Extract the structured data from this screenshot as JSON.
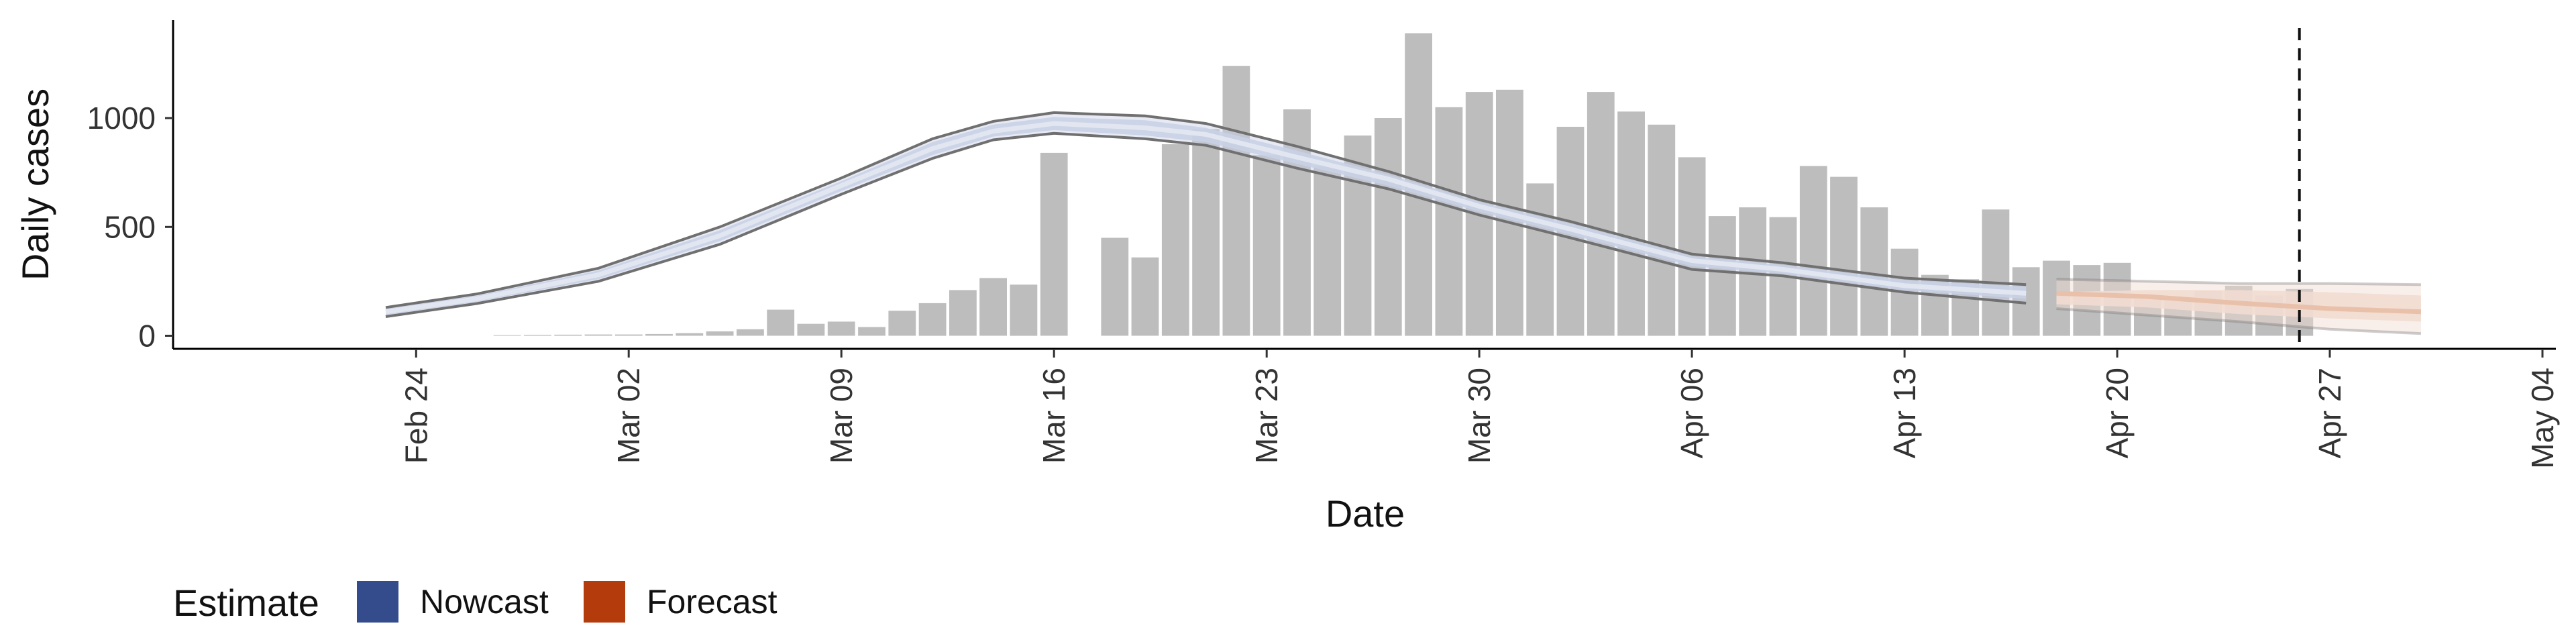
{
  "chart_data": {
    "type": "bar",
    "xlabel": "Date",
    "ylabel": "Daily cases",
    "ylim": [
      -60,
      1450
    ],
    "xlim": [
      "2020-02-16",
      "2020-05-04"
    ],
    "y_ticks": [
      0,
      500,
      1000
    ],
    "x_ticks": [
      {
        "date": "2020-02-24",
        "label": "Feb 24"
      },
      {
        "date": "2020-03-02",
        "label": "Mar 02"
      },
      {
        "date": "2020-03-09",
        "label": "Mar 09"
      },
      {
        "date": "2020-03-16",
        "label": "Mar 16"
      },
      {
        "date": "2020-03-23",
        "label": "Mar 23"
      },
      {
        "date": "2020-03-30",
        "label": "Mar 30"
      },
      {
        "date": "2020-04-06",
        "label": "Apr 06"
      },
      {
        "date": "2020-04-13",
        "label": "Apr 13"
      },
      {
        "date": "2020-04-20",
        "label": "Apr 20"
      },
      {
        "date": "2020-04-27",
        "label": "Apr 27"
      },
      {
        "date": "2020-05-04",
        "label": "May 04"
      }
    ],
    "cases": {
      "dates": [
        "2020-02-27",
        "2020-02-28",
        "2020-02-29",
        "2020-03-01",
        "2020-03-02",
        "2020-03-03",
        "2020-03-04",
        "2020-03-05",
        "2020-03-06",
        "2020-03-07",
        "2020-03-08",
        "2020-03-09",
        "2020-03-10",
        "2020-03-11",
        "2020-03-12",
        "2020-03-13",
        "2020-03-14",
        "2020-03-15",
        "2020-03-16",
        "2020-03-17",
        "2020-03-18",
        "2020-03-19",
        "2020-03-20",
        "2020-03-21",
        "2020-03-22",
        "2020-03-23",
        "2020-03-24",
        "2020-03-25",
        "2020-03-26",
        "2020-03-27",
        "2020-03-28",
        "2020-03-29",
        "2020-03-30",
        "2020-03-31",
        "2020-04-01",
        "2020-04-02",
        "2020-04-03",
        "2020-04-04",
        "2020-04-05",
        "2020-04-06",
        "2020-04-07",
        "2020-04-08",
        "2020-04-09",
        "2020-04-10",
        "2020-04-11",
        "2020-04-12",
        "2020-04-13",
        "2020-04-14",
        "2020-04-15",
        "2020-04-16",
        "2020-04-17",
        "2020-04-18",
        "2020-04-19",
        "2020-04-20",
        "2020-04-21",
        "2020-04-22",
        "2020-04-23",
        "2020-04-24",
        "2020-04-25",
        "2020-04-26"
      ],
      "values": [
        3,
        4,
        5,
        6,
        6,
        8,
        12,
        20,
        30,
        120,
        55,
        65,
        40,
        115,
        150,
        210,
        265,
        235,
        840,
        0,
        450,
        360,
        880,
        950,
        1240,
        830,
        1040,
        780,
        920,
        1000,
        1390,
        1050,
        1120,
        1130,
        700,
        960,
        1120,
        1030,
        970,
        820,
        550,
        590,
        545,
        780,
        730,
        590,
        400,
        280,
        260,
        580,
        315,
        345,
        325,
        335,
        170,
        160,
        205,
        230,
        185,
        215
      ]
    },
    "nowcast": {
      "dates": [
        "2020-02-23",
        "2020-02-26",
        "2020-03-01",
        "2020-03-05",
        "2020-03-09",
        "2020-03-12",
        "2020-03-14",
        "2020-03-16",
        "2020-03-19",
        "2020-03-21",
        "2020-03-24",
        "2020-03-27",
        "2020-03-30",
        "2020-04-02",
        "2020-04-06",
        "2020-04-09",
        "2020-04-13",
        "2020-04-17"
      ],
      "median": [
        110,
        170,
        280,
        460,
        690,
        860,
        940,
        975,
        955,
        925,
        820,
        720,
        595,
        490,
        345,
        305,
        230,
        195
      ],
      "upper": [
        125,
        185,
        300,
        485,
        710,
        890,
        970,
        1005,
        990,
        955,
        850,
        740,
        615,
        515,
        365,
        325,
        255,
        225
      ],
      "lower": [
        95,
        155,
        260,
        435,
        665,
        830,
        915,
        945,
        920,
        890,
        790,
        690,
        570,
        465,
        320,
        285,
        210,
        170
      ],
      "outer_upper": [
        130,
        192,
        310,
        500,
        725,
        905,
        985,
        1025,
        1010,
        975,
        870,
        755,
        625,
        525,
        375,
        335,
        265,
        235
      ],
      "outer_lower": [
        88,
        148,
        250,
        420,
        650,
        815,
        900,
        930,
        905,
        875,
        770,
        675,
        555,
        450,
        305,
        275,
        200,
        150
      ]
    },
    "forecast": {
      "dates": [
        "2020-04-18",
        "2020-04-21",
        "2020-04-24",
        "2020-04-27",
        "2020-04-30"
      ],
      "median": [
        195,
        180,
        150,
        125,
        110
      ],
      "upper": [
        200,
        210,
        210,
        200,
        185
      ],
      "lower": [
        145,
        130,
        100,
        80,
        65
      ],
      "outer_upper": [
        260,
        250,
        240,
        240,
        235
      ],
      "outer_lower": [
        125,
        95,
        65,
        30,
        10
      ]
    },
    "vline_date": "2020-04-26",
    "legend": {
      "title": "Estimate",
      "position": "bottom-left",
      "items": [
        {
          "label": "Nowcast",
          "color": "#344c8c"
        },
        {
          "label": "Forecast",
          "color": "#b33b0c"
        }
      ]
    },
    "colors": {
      "bar": "#bdbdbd",
      "nowcast_band": "#c9d1e6",
      "nowcast_line": "#e2e6f1",
      "forecast_band": "#f1dcd0",
      "forecast_line": "#e9c1ab",
      "bound": "#707070"
    }
  }
}
